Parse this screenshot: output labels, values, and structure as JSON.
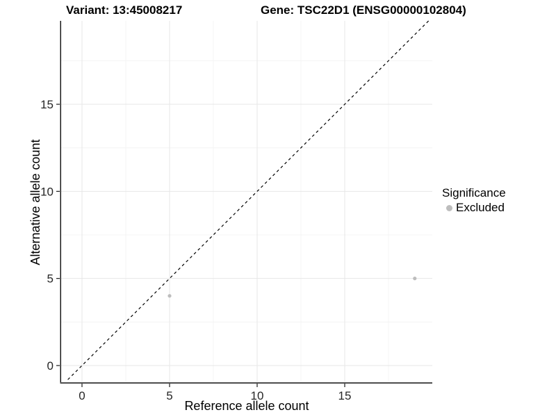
{
  "chart_data": {
    "type": "scatter",
    "titles": {
      "left": "Variant: 13:45008217",
      "right": "Gene: TSC22D1 (ENSG00000102804)"
    },
    "xlabel": "Reference allele count",
    "ylabel": "Alternative allele count",
    "xlim": [
      -1.19,
      20.0
    ],
    "ylim": [
      -1.0,
      19.79
    ],
    "x_ticks": [
      0,
      5,
      10,
      15
    ],
    "y_ticks": [
      0,
      5,
      10,
      15
    ],
    "x_minor_ticks": [
      2.5,
      7.5,
      12.5,
      17.5
    ],
    "y_minor_ticks": [
      2.5,
      7.5,
      12.5,
      17.5
    ],
    "grid": "major and minor, light gray on white",
    "identity_line": {
      "type": "y=x",
      "style": "dashed",
      "color": "#000000"
    },
    "series": [
      {
        "name": "Excluded",
        "color": "#bdbdbd",
        "points": [
          {
            "x": 5,
            "y": 4
          },
          {
            "x": 19,
            "y": 5
          }
        ]
      }
    ],
    "legend": {
      "title": "Significance",
      "position": "right",
      "items": [
        {
          "label": "Excluded",
          "color": "#bdbdbd"
        }
      ]
    }
  },
  "colors": {
    "background": "#ffffff",
    "grid_major": "#e7e7e7",
    "grid_minor": "#f4f4f4",
    "axis_line_left": "#1a1a1a",
    "axis_line_bottom": "#4d4d4d",
    "tick_mark": "#1a1a1a",
    "tick_text": "#262626",
    "point": "#bdbdbd"
  }
}
